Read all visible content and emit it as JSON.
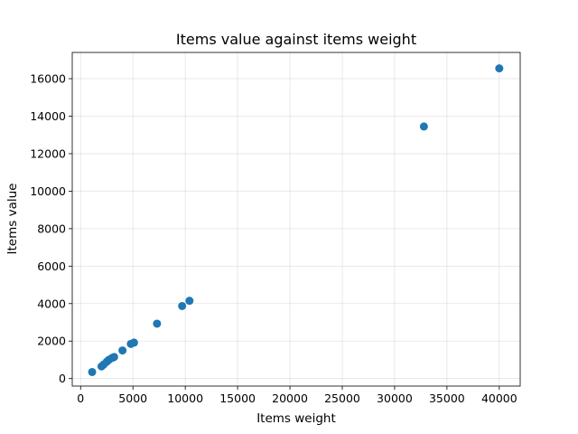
{
  "chart_data": {
    "type": "scatter",
    "title": "Items value against items weight",
    "xlabel": "Items weight",
    "ylabel": "Items value",
    "xlim": [
      -800,
      42000
    ],
    "ylim": [
      -400,
      17400
    ],
    "xticks": [
      0,
      5000,
      10000,
      15000,
      20000,
      25000,
      30000,
      35000,
      40000
    ],
    "yticks": [
      0,
      2000,
      4000,
      6000,
      8000,
      10000,
      12000,
      14000,
      16000
    ],
    "grid": true,
    "color": "#1f77b4",
    "series": [
      {
        "x": [
          1100,
          2000,
          2200,
          2500,
          2700,
          3000,
          3200,
          4000,
          4800,
          5100,
          7300,
          9700,
          10400,
          32800,
          40000
        ],
        "y": [
          350,
          650,
          750,
          900,
          1000,
          1100,
          1150,
          1500,
          1850,
          1920,
          2930,
          3870,
          4150,
          13450,
          16550
        ]
      }
    ]
  }
}
